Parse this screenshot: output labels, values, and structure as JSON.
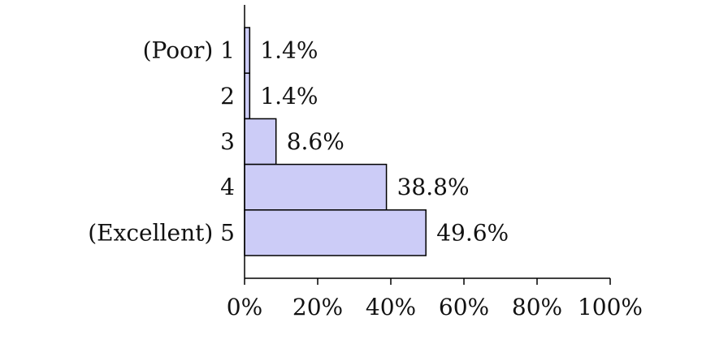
{
  "chart_data": {
    "type": "bar",
    "orientation": "horizontal",
    "categories": [
      "(Poor) 1",
      "2",
      "3",
      "4",
      "(Excellent) 5"
    ],
    "values": [
      1.4,
      1.4,
      8.6,
      38.8,
      49.6
    ],
    "value_labels": [
      "1.4%",
      "1.4%",
      "8.6%",
      "38.8%",
      "49.6%"
    ],
    "xlim": [
      0,
      100
    ],
    "x_ticks": [
      0,
      20,
      40,
      60,
      80,
      100
    ],
    "x_tick_labels": [
      "0%",
      "20%",
      "40%",
      "60%",
      "80%",
      "100%"
    ],
    "title": "",
    "xlabel": "",
    "ylabel": "",
    "grid": false,
    "colors": {
      "bar_fill": "#ccccf7",
      "bar_stroke": "#000000",
      "axis": "#000000"
    }
  }
}
